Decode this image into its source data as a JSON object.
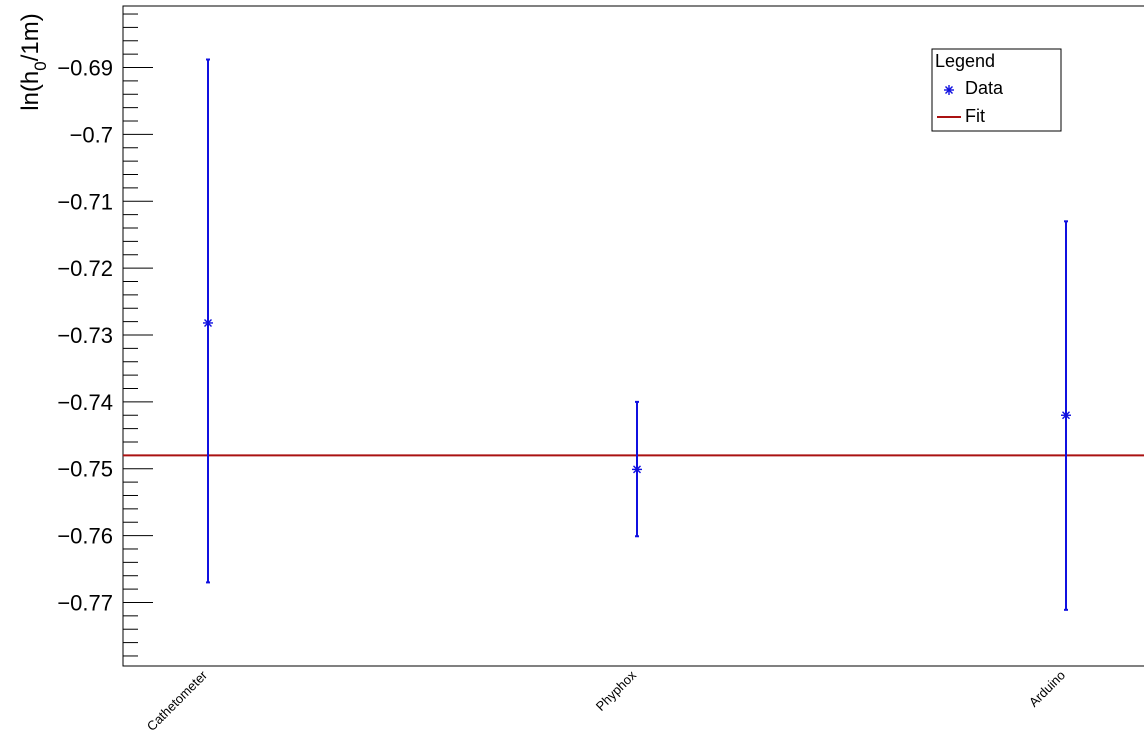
{
  "chart_data": {
    "type": "scatter",
    "title": "",
    "xlabel": "",
    "ylabel": "ln(h0/1m)",
    "ylabel_parts": {
      "prefix": "ln(h",
      "subscript": "0",
      "suffix": "/1m)"
    },
    "categories": [
      "Cathetometer",
      "Phyphox",
      "Arduino"
    ],
    "ylim": [
      -0.7795,
      -0.6808
    ],
    "y_ticks": [
      -0.69,
      -0.7,
      -0.71,
      -0.72,
      -0.73,
      -0.74,
      -0.75,
      -0.76,
      -0.77
    ],
    "y_tick_labels": [
      "−0.69",
      "−0.7",
      "−0.71",
      "−0.72",
      "−0.73",
      "−0.74",
      "−0.75",
      "−0.76",
      "−0.77"
    ],
    "grid": false,
    "series": [
      {
        "name": "Data",
        "marker": "asterisk",
        "color": "#1010e0",
        "values": [
          -0.7282,
          -0.7501,
          -0.742
        ],
        "error_low": [
          -0.767,
          -0.7601,
          -0.7711
        ],
        "error_high": [
          -0.6888,
          -0.74,
          -0.713
        ]
      },
      {
        "name": "Fit",
        "type": "hline",
        "color": "#aa1111",
        "value": -0.748
      }
    ],
    "legend": {
      "title": "Legend",
      "placement": "top-right",
      "entries": [
        "Data",
        "Fit"
      ]
    }
  }
}
